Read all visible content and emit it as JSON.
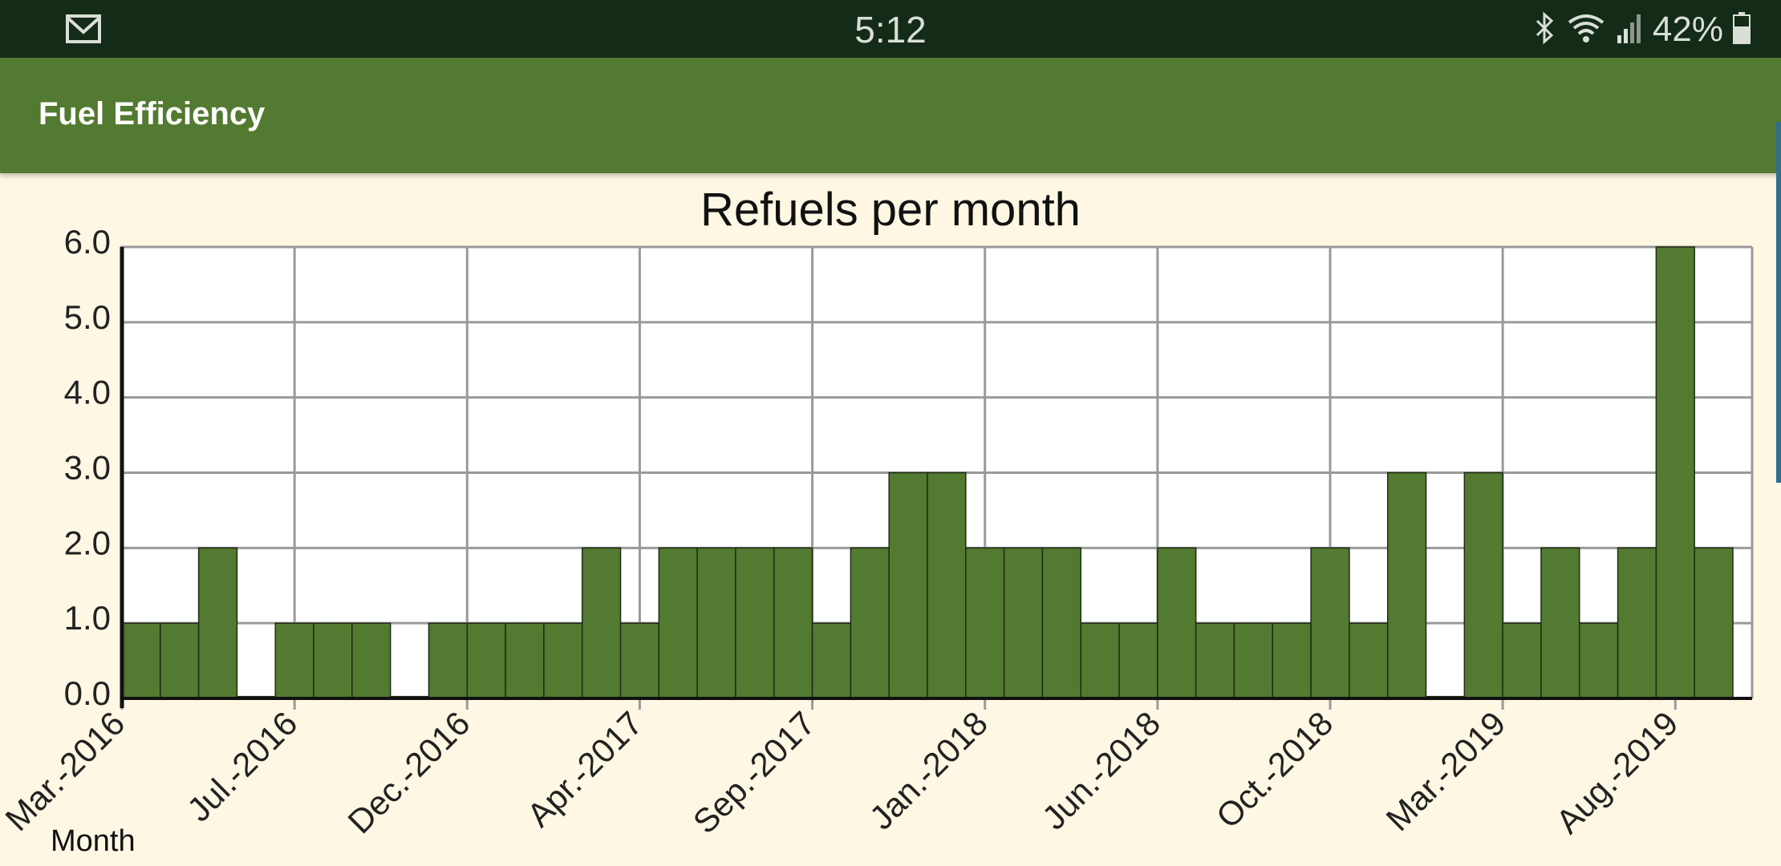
{
  "status_bar": {
    "time": "5:12",
    "battery": "42%",
    "icons": [
      "gmail-icon",
      "bluetooth-icon",
      "wifi-icon",
      "signal-icon",
      "battery-icon"
    ]
  },
  "app_bar": {
    "title": "Fuel Efficiency"
  },
  "colors": {
    "status_bar": "#142b17",
    "app_bar": "#527a30",
    "background": "#fdf7e3",
    "bar": "#527a30",
    "grid": "#9a9a9a"
  },
  "chart_data": {
    "type": "bar",
    "title": "Refuels per month",
    "xlabel": "Month",
    "ylabel": "",
    "ylim": [
      0,
      6
    ],
    "y_ticks": [
      "0.0",
      "1.0",
      "2.0",
      "3.0",
      "4.0",
      "5.0",
      "6.0"
    ],
    "x_tick_labels": [
      "Mar.-2016",
      "Jul.-2016",
      "Dec.-2016",
      "Apr.-2017",
      "Sep.-2017",
      "Jan.-2018",
      "Jun.-2018",
      "Oct.-2018",
      "Mar.-2019",
      "Aug.-2019"
    ],
    "grid": true,
    "values": [
      1,
      1,
      2,
      0,
      1,
      1,
      1,
      0,
      1,
      1,
      1,
      1,
      2,
      1,
      2,
      2,
      2,
      2,
      1,
      2,
      3,
      3,
      2,
      2,
      2,
      1,
      1,
      2,
      1,
      1,
      1,
      2,
      1,
      3,
      0,
      3,
      1,
      2,
      1,
      2,
      6,
      2
    ]
  }
}
